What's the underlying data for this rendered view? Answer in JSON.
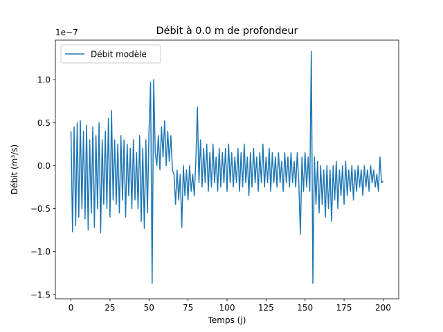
{
  "chart_data": {
    "type": "line",
    "title": "Débit à 0.0 m de profondeur",
    "xlabel": "Temps (j)",
    "ylabel": "Débit (m³/s)",
    "y_offset_label": "1e−7",
    "xlim": [
      -10,
      210
    ],
    "ylim": [
      -1.55,
      1.46
    ],
    "xticks": [
      0,
      25,
      50,
      75,
      100,
      125,
      150,
      175,
      200
    ],
    "yticks": [
      {
        "value": -1.5,
        "label": "−1.5"
      },
      {
        "value": -1.0,
        "label": "−1.0"
      },
      {
        "value": -0.5,
        "label": "−0.5"
      },
      {
        "value": 0,
        "label": "0.0"
      },
      {
        "value": 0.5,
        "label": "0.5"
      },
      {
        "value": 1.0,
        "label": "1.0"
      }
    ],
    "legend": "upper left",
    "x": [
      0,
      1,
      2,
      3,
      4,
      5,
      6,
      7,
      8,
      9,
      10,
      11,
      12,
      13,
      14,
      15,
      16,
      17,
      18,
      19,
      20,
      21,
      22,
      23,
      24,
      25,
      26,
      27,
      28,
      29,
      30,
      31,
      32,
      33,
      34,
      35,
      36,
      37,
      38,
      39,
      40,
      41,
      42,
      43,
      44,
      45,
      46,
      47,
      48,
      49,
      50,
      51,
      52,
      53,
      54,
      55,
      56,
      57,
      58,
      59,
      60,
      61,
      62,
      63,
      64,
      65,
      66,
      67,
      68,
      69,
      70,
      71,
      72,
      73,
      74,
      75,
      76,
      77,
      78,
      79,
      80,
      81,
      82,
      83,
      84,
      85,
      86,
      87,
      88,
      89,
      90,
      91,
      92,
      93,
      94,
      95,
      96,
      97,
      98,
      99,
      100,
      101,
      102,
      103,
      104,
      105,
      106,
      107,
      108,
      109,
      110,
      111,
      112,
      113,
      114,
      115,
      116,
      117,
      118,
      119,
      120,
      121,
      122,
      123,
      124,
      125,
      126,
      127,
      128,
      129,
      130,
      131,
      132,
      133,
      134,
      135,
      136,
      137,
      138,
      139,
      140,
      141,
      142,
      143,
      144,
      145,
      146,
      147,
      148,
      149,
      150,
      151,
      152,
      153,
      154,
      155,
      156,
      157,
      158,
      159,
      160,
      161,
      162,
      163,
      164,
      165,
      166,
      167,
      168,
      169,
      170,
      171,
      172,
      173,
      174,
      175,
      176,
      177,
      178,
      179,
      180,
      181,
      182,
      183,
      184,
      185,
      186,
      187,
      188,
      189,
      190,
      191,
      192,
      193,
      194,
      195,
      196,
      197,
      198,
      199,
      200
    ],
    "series": [
      {
        "name": "Débit modèle",
        "color": "#1f77b4",
        "values": [
          0.4,
          -0.77,
          0.45,
          -0.7,
          0.5,
          -0.6,
          0.52,
          -0.5,
          0.4,
          -0.62,
          0.47,
          -0.75,
          0.3,
          -0.55,
          0.45,
          -0.72,
          0.35,
          -0.5,
          0.5,
          -0.78,
          0.3,
          -0.45,
          0.4,
          -0.5,
          0.55,
          -0.6,
          0.64,
          -0.4,
          0.3,
          -0.45,
          0.25,
          -0.55,
          0.35,
          -0.4,
          0.3,
          -0.6,
          0.25,
          -0.35,
          0.2,
          -0.5,
          0.3,
          -0.4,
          0.15,
          -0.5,
          0.35,
          -0.65,
          0.2,
          -0.73,
          0.3,
          -0.55,
          0.4,
          0.97,
          -1.37,
          1.0,
          0.15,
          0.0,
          0.35,
          -0.05,
          0.45,
          0.1,
          0.52,
          0.0,
          0.4,
          0.05,
          0.35,
          -0.05,
          -0.1,
          -0.45,
          -0.05,
          -0.4,
          -0.1,
          -0.72,
          0.0,
          -0.35,
          -0.05,
          -0.4,
          0.0,
          -0.3,
          -0.1,
          -0.35,
          0.05,
          0.68,
          -0.2,
          0.3,
          -0.25,
          0.2,
          -0.2,
          0.25,
          -0.3,
          0.15,
          -0.25,
          0.25,
          -0.2,
          0.1,
          -0.3,
          0.2,
          -0.25,
          0.15,
          -0.2,
          0.2,
          -0.3,
          0.25,
          -0.2,
          0.15,
          -0.25,
          0.1,
          -0.2,
          0.2,
          -0.3,
          0.15,
          -0.25,
          0.25,
          -0.2,
          0.1,
          -0.35,
          0.15,
          -0.25,
          0.2,
          -0.2,
          0.1,
          -0.3,
          0.15,
          -0.2,
          0.25,
          -0.25,
          0.1,
          -0.2,
          0.2,
          -0.3,
          0.15,
          -0.2,
          0.1,
          -0.25,
          0.15,
          -0.2,
          0.05,
          -0.3,
          0.15,
          -0.2,
          0.1,
          -0.25,
          0.15,
          -0.2,
          0.05,
          -0.25,
          0.15,
          -0.2,
          -0.8,
          0.1,
          -0.3,
          0.15,
          -0.25,
          0.1,
          -0.3,
          1.33,
          -1.37,
          0.1,
          -0.45,
          0.05,
          -0.55,
          0.0,
          -0.45,
          -0.05,
          -0.6,
          0.0,
          -0.5,
          -0.05,
          -0.65,
          0.0,
          -0.4,
          0.05,
          -0.5,
          -0.05,
          -0.35,
          0.0,
          -0.45,
          0.05,
          -0.35,
          -0.05,
          -0.3,
          0.0,
          -0.4,
          -0.05,
          -0.3,
          0.0,
          -0.25,
          -0.05,
          -0.35,
          0.0,
          -0.25,
          -0.05,
          -0.3,
          0.0,
          -0.2,
          -0.05,
          -0.25,
          -0.1,
          -0.3,
          0.1,
          -0.2,
          -0.18
        ]
      }
    ]
  }
}
